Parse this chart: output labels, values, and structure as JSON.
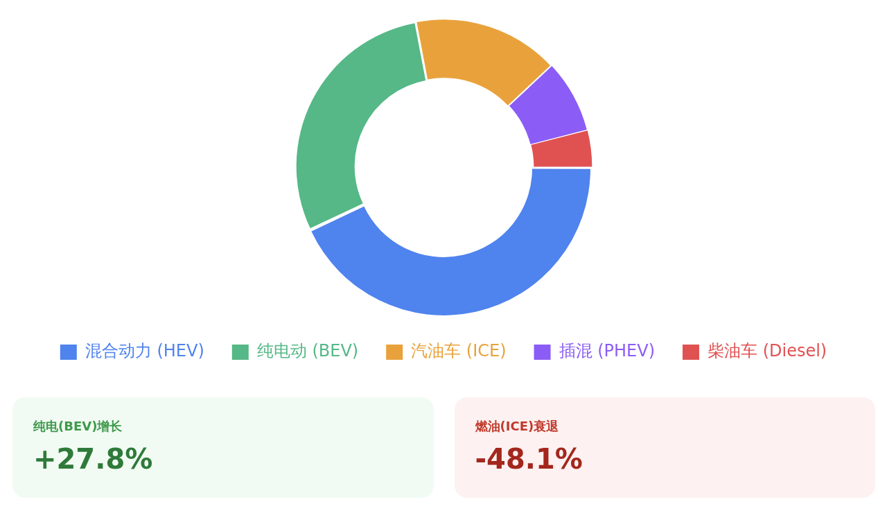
{
  "chart_data": [
    {
      "type": "donut",
      "categories": [
        "混合动力 (HEV)",
        "纯电动 (BEV)",
        "汽油车 (ICE)",
        "插混 (PHEV)",
        "柴油车 (Diesel)"
      ],
      "values": [
        43,
        29,
        16,
        8,
        4
      ],
      "colors": [
        "#4f83ee",
        "#55b886",
        "#e9a23b",
        "#8b5cf6",
        "#e05252"
      ],
      "legend": "bottom"
    },
    {
      "type": "other",
      "annotations": [
        "纯电(BEV)增长",
        "+27.8%",
        "燃油(ICE)衰退",
        "-48.1%"
      ]
    }
  ]
}
